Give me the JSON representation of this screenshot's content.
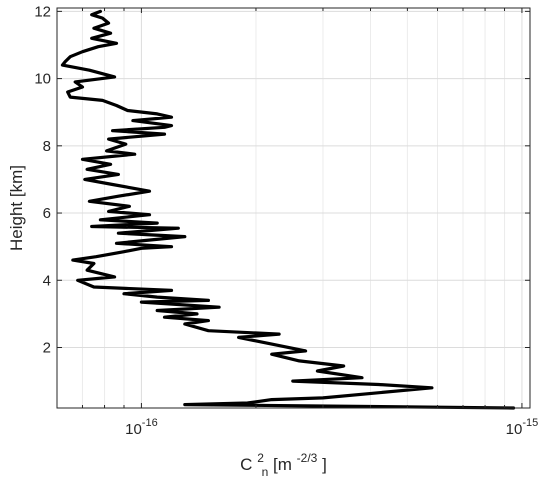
{
  "chart_data": {
    "type": "line",
    "title": "",
    "xlabel_parts": {
      "base": "C",
      "sub": "n",
      "sup": "2",
      "unit_open": " [m",
      "unit_sup": "-2/3",
      "unit_close": "]"
    },
    "ylabel": "Height [km]",
    "x_scale": "log",
    "xlim": [
      6e-17,
      1.05e-15
    ],
    "ylim": [
      0.2,
      12.1
    ],
    "grid": true,
    "legend": "none",
    "x_ticks": [
      {
        "value": 1e-16,
        "base": "10",
        "exp": "-16"
      },
      {
        "value": 1e-15,
        "base": "10",
        "exp": "-15"
      }
    ],
    "y_ticks": [
      {
        "value": 2,
        "label": "2"
      },
      {
        "value": 4,
        "label": "4"
      },
      {
        "value": 6,
        "label": "6"
      },
      {
        "value": 8,
        "label": "8"
      },
      {
        "value": 10,
        "label": "10"
      },
      {
        "value": 12,
        "label": "12"
      }
    ],
    "series": [
      {
        "color": "#000000",
        "points": [
          [
            9.5e-16,
            0.2
          ],
          [
            1.3e-16,
            0.3
          ],
          [
            1.9e-16,
            0.35
          ],
          [
            2.2e-16,
            0.45
          ],
          [
            3e-16,
            0.5
          ],
          [
            5.8e-16,
            0.8
          ],
          [
            4.2e-16,
            0.9
          ],
          [
            2.5e-16,
            1.0
          ],
          [
            3.8e-16,
            1.1
          ],
          [
            2.9e-16,
            1.3
          ],
          [
            3.4e-16,
            1.45
          ],
          [
            2.6e-16,
            1.6
          ],
          [
            2.2e-16,
            1.8
          ],
          [
            2.7e-16,
            1.9
          ],
          [
            2.2e-16,
            2.1
          ],
          [
            1.8e-16,
            2.3
          ],
          [
            2.3e-16,
            2.4
          ],
          [
            1.5e-16,
            2.5
          ],
          [
            1.3e-16,
            2.7
          ],
          [
            1.5e-16,
            2.8
          ],
          [
            1.15e-16,
            2.9
          ],
          [
            1.4e-16,
            3.0
          ],
          [
            1.1e-16,
            3.1
          ],
          [
            1.6e-16,
            3.2
          ],
          [
            1e-16,
            3.35
          ],
          [
            1.5e-16,
            3.4
          ],
          [
            1.1e-16,
            3.5
          ],
          [
            9e-17,
            3.6
          ],
          [
            1.2e-16,
            3.7
          ],
          [
            7.5e-17,
            3.8
          ],
          [
            6.8e-17,
            4.0
          ],
          [
            8.5e-17,
            4.1
          ],
          [
            7.2e-17,
            4.3
          ],
          [
            7.5e-17,
            4.5
          ],
          [
            6.6e-17,
            4.6
          ],
          [
            7.6e-17,
            4.7
          ],
          [
            9e-17,
            4.85
          ],
          [
            1e-16,
            4.95
          ],
          [
            1.2e-16,
            5.0
          ],
          [
            8.6e-17,
            5.1
          ],
          [
            1.3e-16,
            5.3
          ],
          [
            8.7e-17,
            5.4
          ],
          [
            1.25e-16,
            5.55
          ],
          [
            7.4e-17,
            5.6
          ],
          [
            1.1e-16,
            5.7
          ],
          [
            7.8e-17,
            5.8
          ],
          [
            1.05e-16,
            5.95
          ],
          [
            8.2e-17,
            6.05
          ],
          [
            9.3e-17,
            6.2
          ],
          [
            7.3e-17,
            6.35
          ],
          [
            8.7e-17,
            6.5
          ],
          [
            1.05e-16,
            6.65
          ],
          [
            8.4e-17,
            6.85
          ],
          [
            7.1e-17,
            7.0
          ],
          [
            8.7e-17,
            7.15
          ],
          [
            7.2e-17,
            7.3
          ],
          [
            8.3e-17,
            7.45
          ],
          [
            7e-17,
            7.6
          ],
          [
            9.6e-17,
            7.75
          ],
          [
            8.1e-17,
            7.85
          ],
          [
            9.1e-17,
            8.05
          ],
          [
            8.2e-17,
            8.2
          ],
          [
            1.15e-16,
            8.35
          ],
          [
            8.4e-17,
            8.45
          ],
          [
            1.15e-16,
            8.55
          ],
          [
            1.2e-16,
            8.6
          ],
          [
            9.5e-17,
            8.75
          ],
          [
            1.2e-16,
            8.85
          ],
          [
            1.1e-16,
            8.95
          ],
          [
            9.2e-17,
            9.05
          ],
          [
            8.6e-17,
            9.2
          ],
          [
            7.9e-17,
            9.35
          ],
          [
            6.5e-17,
            9.45
          ],
          [
            6.4e-17,
            9.6
          ],
          [
            7e-17,
            9.75
          ],
          [
            6.7e-17,
            9.9
          ],
          [
            8.5e-17,
            10.05
          ],
          [
            7.3e-17,
            10.25
          ],
          [
            6.2e-17,
            10.4
          ],
          [
            6.3e-17,
            10.5
          ],
          [
            6.5e-17,
            10.65
          ],
          [
            7e-17,
            10.8
          ],
          [
            7.7e-17,
            10.95
          ],
          [
            8.6e-17,
            11.05
          ],
          [
            7.4e-17,
            11.2
          ],
          [
            8.3e-17,
            11.35
          ],
          [
            7.5e-17,
            11.5
          ],
          [
            8.2e-17,
            11.65
          ],
          [
            7.9e-17,
            11.8
          ],
          [
            7.4e-17,
            11.9
          ],
          [
            7.8e-17,
            12.0
          ]
        ]
      }
    ]
  }
}
